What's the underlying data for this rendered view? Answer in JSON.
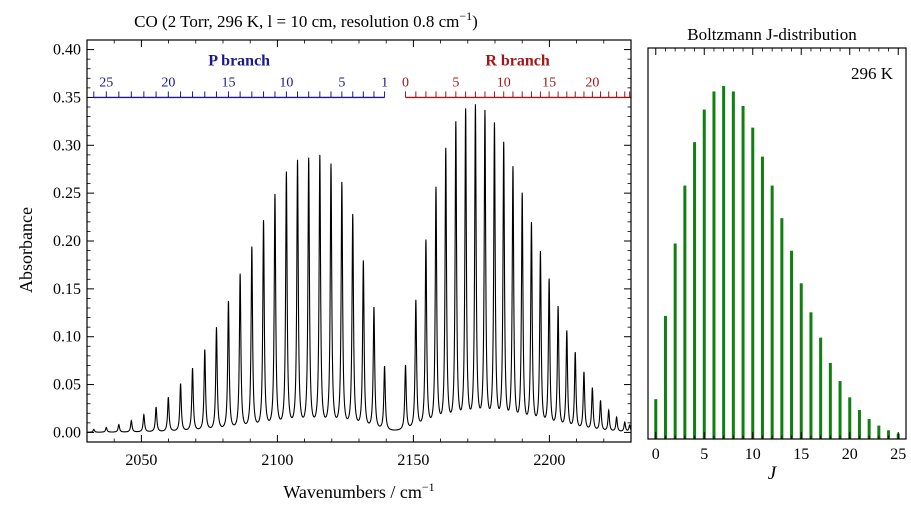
{
  "chart_data": [
    {
      "type": "line",
      "title": "CO (2 Torr, 296 K, l = 10 cm, resolution 0.8 cm",
      "title_sup": "−1",
      "title_end": ")",
      "xlabel": "Wavenumbers / cm",
      "xlabel_sup": "−1",
      "ylabel": "Absorbance",
      "xlim": [
        2030,
        2230
      ],
      "ylim": [
        -0.01,
        0.41
      ],
      "xticks": [
        "2050",
        "2100",
        "2150",
        "2200"
      ],
      "xtick_values": [
        2050,
        2100,
        2150,
        2200
      ],
      "yticks": [
        "0.00",
        "0.05",
        "0.10",
        "0.15",
        "0.20",
        "0.25",
        "0.30",
        "0.35",
        "0.40"
      ],
      "ytick_values": [
        0,
        0.05,
        0.1,
        0.15,
        0.2,
        0.25,
        0.3,
        0.35,
        0.4
      ],
      "grid": false,
      "line_color": "#000000",
      "series": [
        {
          "x": [
            2139.4,
            2135.5,
            2131.6,
            2127.7,
            2123.7,
            2119.7,
            2115.6,
            2111.5,
            2107.4,
            2103.3,
            2099.1,
            2094.9,
            2090.6,
            2086.3,
            2082.0,
            2077.6,
            2073.3,
            2068.8,
            2064.4,
            2059.9,
            2055.4,
            2050.9,
            2046.3,
            2041.7,
            2037.1,
            2032.5
          ],
          "y": [
            0.067,
            0.128,
            0.176,
            0.224,
            0.257,
            0.276,
            0.285,
            0.282,
            0.28,
            0.268,
            0.245,
            0.218,
            0.191,
            0.163,
            0.135,
            0.108,
            0.085,
            0.066,
            0.05,
            0.036,
            0.026,
            0.018,
            0.012,
            0.008,
            0.005,
            0.003
          ]
        },
        {
          "x": [
            2147.1,
            2150.9,
            2154.6,
            2158.3,
            2161.9,
            2165.6,
            2169.2,
            2172.8,
            2176.3,
            2179.8,
            2183.2,
            2186.6,
            2190.0,
            2193.4,
            2196.7,
            2199.9,
            2203.2,
            2206.4,
            2209.5,
            2212.7,
            2215.8,
            2218.8,
            2221.8,
            2224.7,
            2227.7,
            2229.5
          ],
          "y": [
            0.068,
            0.135,
            0.197,
            0.251,
            0.291,
            0.318,
            0.331,
            0.335,
            0.329,
            0.316,
            0.296,
            0.271,
            0.244,
            0.214,
            0.184,
            0.156,
            0.128,
            0.103,
            0.081,
            0.061,
            0.045,
            0.032,
            0.022,
            0.015,
            0.01,
            0.007
          ]
        }
      ],
      "annotations": {
        "p_branch": {
          "label": "P branch",
          "color": "#1a1a8c",
          "rotational_labels": [
            "25",
            "20",
            "15",
            "10",
            "5",
            "1"
          ],
          "rotational_label_values": [
            25,
            20,
            15,
            10,
            5,
            1
          ],
          "j_range": [
            1,
            26
          ],
          "level": 0.35
        },
        "r_branch": {
          "label": "R branch",
          "color": "#a01818",
          "rotational_labels": [
            "0",
            "5",
            "10",
            "15",
            "20"
          ],
          "rotational_label_values": [
            0,
            5,
            10,
            15,
            20
          ],
          "j_range": [
            0,
            25
          ],
          "level": 0.35
        }
      }
    },
    {
      "type": "bar",
      "title": "Boltzmann J-distribution",
      "annotation": "296 K",
      "xlabel": "J",
      "xlim": [
        -0.8,
        25.8
      ],
      "ylim": [
        0,
        1.08
      ],
      "xticks": [
        "0",
        "5",
        "10",
        "15",
        "20",
        "25"
      ],
      "xtick_values": [
        0,
        5,
        10,
        15,
        20,
        25
      ],
      "grid": false,
      "bar_color": "#108010",
      "categories": [
        0,
        1,
        2,
        3,
        4,
        5,
        6,
        7,
        8,
        9,
        10,
        11,
        12,
        13,
        14,
        15,
        16,
        17,
        18,
        19,
        20,
        21,
        22,
        23,
        24,
        25
      ],
      "values": [
        0.11,
        0.34,
        0.54,
        0.7,
        0.82,
        0.91,
        0.96,
        0.975,
        0.96,
        0.92,
        0.86,
        0.78,
        0.7,
        0.61,
        0.52,
        0.43,
        0.35,
        0.28,
        0.21,
        0.16,
        0.115,
        0.08,
        0.055,
        0.037,
        0.024,
        0.015
      ]
    }
  ]
}
